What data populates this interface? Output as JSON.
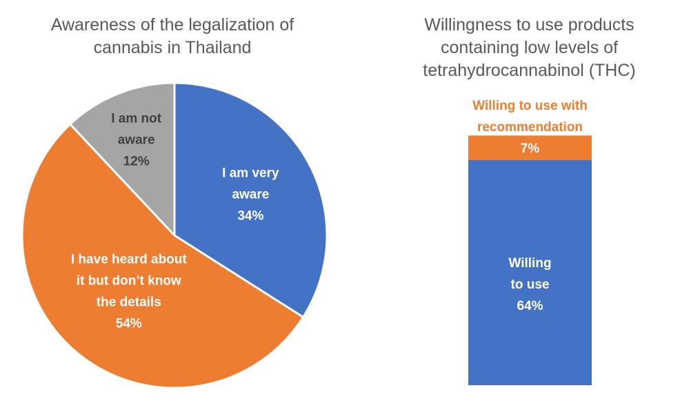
{
  "chart_data": [
    {
      "type": "pie",
      "title": "Awareness of the legalization of cannabis in Thailand",
      "slices": [
        {
          "label": "I am very aware",
          "value": 34,
          "display": "34%",
          "color": "#4472C4"
        },
        {
          "label": "I have heard about it but don’t know the details",
          "value": 54,
          "display": "54%",
          "color": "#ED7D31"
        },
        {
          "label": "I am not aware",
          "value": 12,
          "display": "12%",
          "color": "#A5A5A5"
        }
      ]
    },
    {
      "type": "bar",
      "stacked": true,
      "title": "Willingness to use products containing low levels of tetrahydrocannabinol (THC)",
      "segments": [
        {
          "label": "Willing to use",
          "value": 64,
          "display": "64%",
          "color": "#4472C4"
        },
        {
          "label": "Willing to use with recommendation",
          "value": 7,
          "display": "7%",
          "color": "#ED7D31"
        }
      ]
    }
  ]
}
